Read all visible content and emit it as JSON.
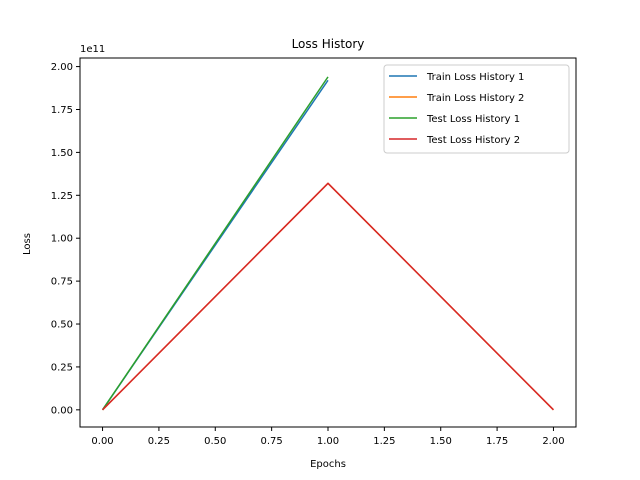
{
  "chart_data": {
    "type": "line",
    "title": "Loss History",
    "xlabel": "Epochs",
    "ylabel": "Loss",
    "y_offset_label": "1e11",
    "xlim": [
      -0.1,
      2.1
    ],
    "ylim": [
      -0.1,
      2.05
    ],
    "x_ticks": [
      0.0,
      0.25,
      0.5,
      0.75,
      1.0,
      1.25,
      1.5,
      1.75,
      2.0
    ],
    "x_tick_labels": [
      "0.00",
      "0.25",
      "0.50",
      "0.75",
      "1.00",
      "1.25",
      "1.50",
      "1.75",
      "2.00"
    ],
    "y_ticks": [
      0.0,
      0.25,
      0.5,
      0.75,
      1.0,
      1.25,
      1.5,
      1.75,
      2.0
    ],
    "y_tick_labels": [
      "0.00",
      "0.25",
      "0.50",
      "0.75",
      "1.00",
      "1.25",
      "1.50",
      "1.75",
      "2.00"
    ],
    "grid": false,
    "legend_position": "top-right",
    "series": [
      {
        "name": "Train Loss History 1",
        "color": "#1f77b4",
        "x": [
          0,
          1
        ],
        "y": [
          0.0,
          1.92
        ]
      },
      {
        "name": "Train Loss History 2",
        "color": "#ff7f0e",
        "x": [
          0,
          1,
          2
        ],
        "y": [
          0.0,
          1.32,
          0.0
        ]
      },
      {
        "name": "Test Loss History 1",
        "color": "#2ca02c",
        "x": [
          0,
          1
        ],
        "y": [
          0.0,
          1.94
        ]
      },
      {
        "name": "Test Loss History 2",
        "color": "#d62728",
        "x": [
          0,
          1,
          2
        ],
        "y": [
          0.0,
          1.32,
          0.0
        ]
      }
    ]
  }
}
